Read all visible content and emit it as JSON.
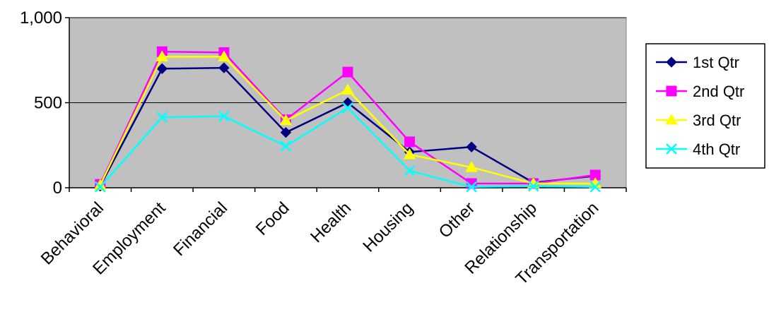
{
  "chart_data": {
    "type": "line",
    "title": "",
    "xlabel": "",
    "ylabel": "",
    "ylim": [
      0,
      1000
    ],
    "yticks": [
      0,
      500,
      1000
    ],
    "ytick_labels": [
      "0",
      "500",
      "1,000"
    ],
    "grid": "horizontal",
    "plot_background": "#c0c0c0",
    "legend_position": "right",
    "categories": [
      "Behavioral",
      "Employment",
      "Financial",
      "Food",
      "Health",
      "Housing",
      "Other",
      "Relationship",
      "Transportation"
    ],
    "series": [
      {
        "name": "1st Qtr",
        "color": "#000080",
        "marker": "diamond",
        "values": [
          10,
          700,
          705,
          325,
          500,
          210,
          240,
          30,
          70
        ]
      },
      {
        "name": "2nd Qtr",
        "color": "#ff00ff",
        "marker": "square",
        "values": [
          20,
          800,
          795,
          400,
          680,
          270,
          25,
          25,
          75
        ]
      },
      {
        "name": "3rd Qtr",
        "color": "#ffff00",
        "marker": "triangle",
        "values": [
          15,
          770,
          770,
          395,
          575,
          195,
          120,
          25,
          25
        ]
      },
      {
        "name": "4th Qtr",
        "color": "#00ffff",
        "marker": "x",
        "values": [
          5,
          415,
          420,
          245,
          470,
          100,
          5,
          10,
          5
        ]
      }
    ]
  }
}
